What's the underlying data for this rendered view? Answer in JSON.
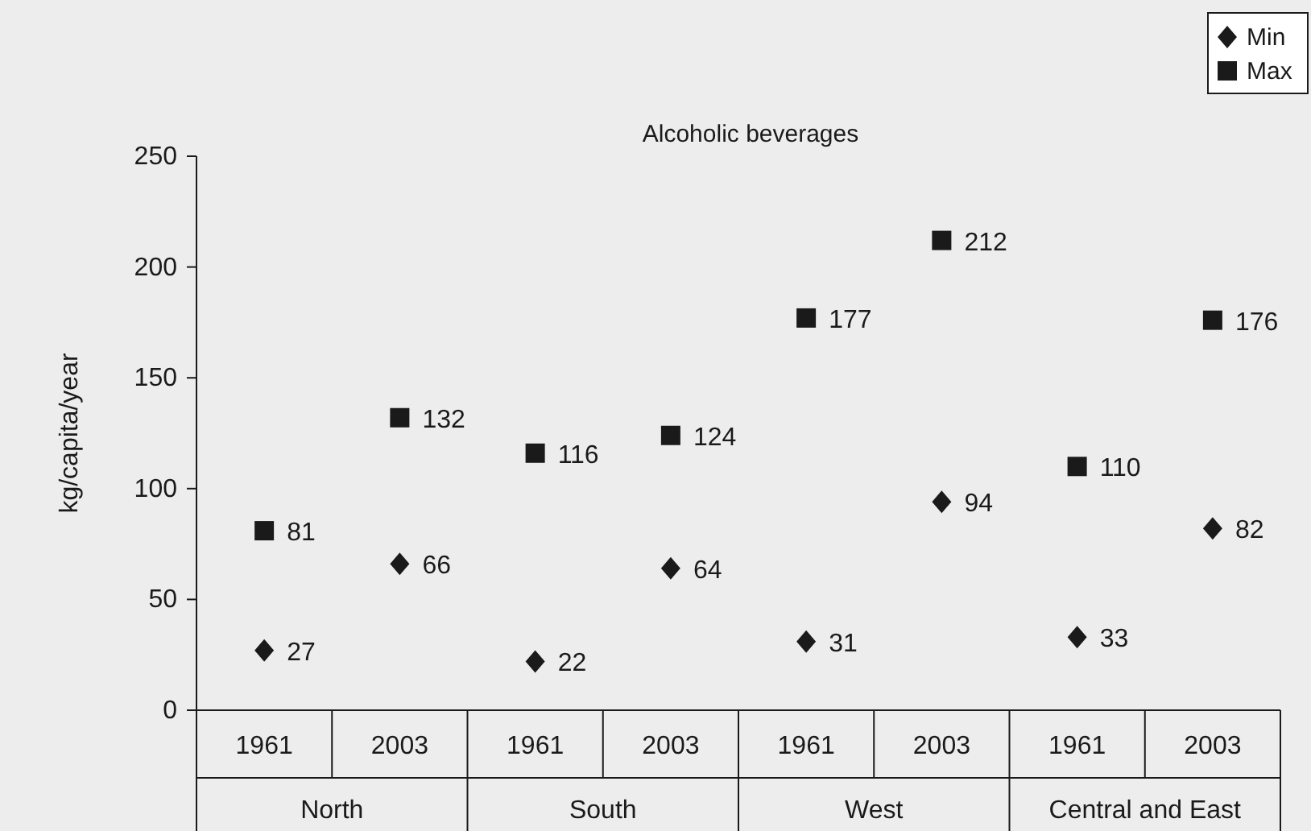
{
  "chart_data": {
    "type": "scatter",
    "title": "Alcoholic beverages",
    "ylabel": "kg/capita/year",
    "categories": [
      "1961",
      "2003",
      "1961",
      "2003",
      "1961",
      "2003",
      "1961",
      "2003"
    ],
    "annotations": [
      "North",
      "South",
      "West",
      "Central and East"
    ],
    "ylim": [
      0,
      250
    ],
    "yticks": [
      0,
      50,
      100,
      150,
      200,
      250
    ],
    "grid": false,
    "legend": "top right",
    "data_labels": true,
    "series": [
      {
        "name": "Min",
        "color": "#1a1a1a",
        "marker": "diamond",
        "values": [
          27,
          66,
          22,
          64,
          31,
          94,
          33,
          82
        ]
      },
      {
        "name": "Max",
        "color": "#1a1a1a",
        "marker": "square",
        "values": [
          81,
          132,
          116,
          124,
          177,
          212,
          110,
          176
        ]
      }
    ]
  }
}
